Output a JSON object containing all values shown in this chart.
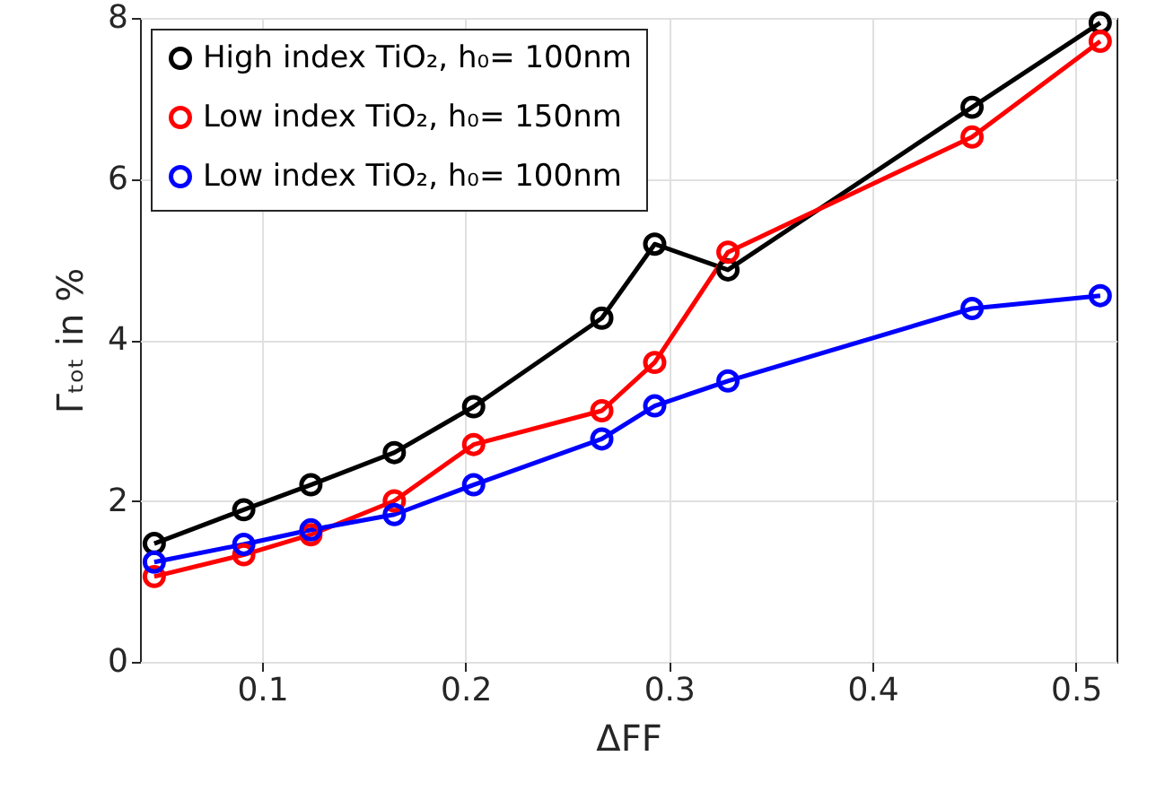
{
  "chart_data": {
    "type": "line",
    "xlabel": "ΔFF",
    "ylabel": "Γₜₒₜ in %",
    "x": [
      0.047,
      0.091,
      0.124,
      0.165,
      0.204,
      0.267,
      0.293,
      0.329,
      0.449,
      0.512
    ],
    "series": [
      {
        "name": "High index TiO₂, h₀= 100nm",
        "color": "#000000",
        "values": [
          1.47,
          1.89,
          2.2,
          2.6,
          3.17,
          4.27,
          5.19,
          4.87,
          6.89,
          7.94
        ]
      },
      {
        "name": "Low index TiO₂, h₀= 150nm",
        "color": "#ff0000",
        "values": [
          1.06,
          1.33,
          1.58,
          2.0,
          2.7,
          3.12,
          3.72,
          5.09,
          6.52,
          7.71
        ]
      },
      {
        "name": "Low index TiO₂, h₀= 100nm",
        "color": "#0000ff",
        "values": [
          1.24,
          1.46,
          1.64,
          1.83,
          2.2,
          2.77,
          3.18,
          3.49,
          4.39,
          4.55
        ]
      }
    ],
    "xlim": [
      0.04,
      0.52
    ],
    "xticks": [
      0.1,
      0.2,
      0.3,
      0.4,
      0.5
    ],
    "ylim": [
      0,
      8
    ],
    "yticks": [
      0,
      2,
      4,
      6,
      8
    ],
    "grid": true,
    "legend": "top left",
    "marker": "circle",
    "line_style": "solid"
  }
}
